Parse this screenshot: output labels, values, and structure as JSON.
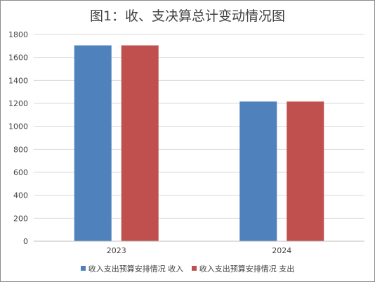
{
  "chart_data": {
    "type": "bar",
    "title": "图1：收、支决算总计变动情况图",
    "categories": [
      "2023",
      "2024"
    ],
    "series": [
      {
        "name": "收入支出预算安排情况  收入",
        "values": [
          1705,
          1216
        ],
        "color": "#4f81bd"
      },
      {
        "name": "收入支出预算安排情况  支出",
        "values": [
          1705,
          1216
        ],
        "color": "#c0504d"
      }
    ],
    "ylim": [
      0,
      1800
    ],
    "yticks": [
      0,
      200,
      400,
      600,
      800,
      1000,
      1200,
      1400,
      1600,
      1800
    ],
    "grid": true,
    "legend_position": "bottom"
  }
}
